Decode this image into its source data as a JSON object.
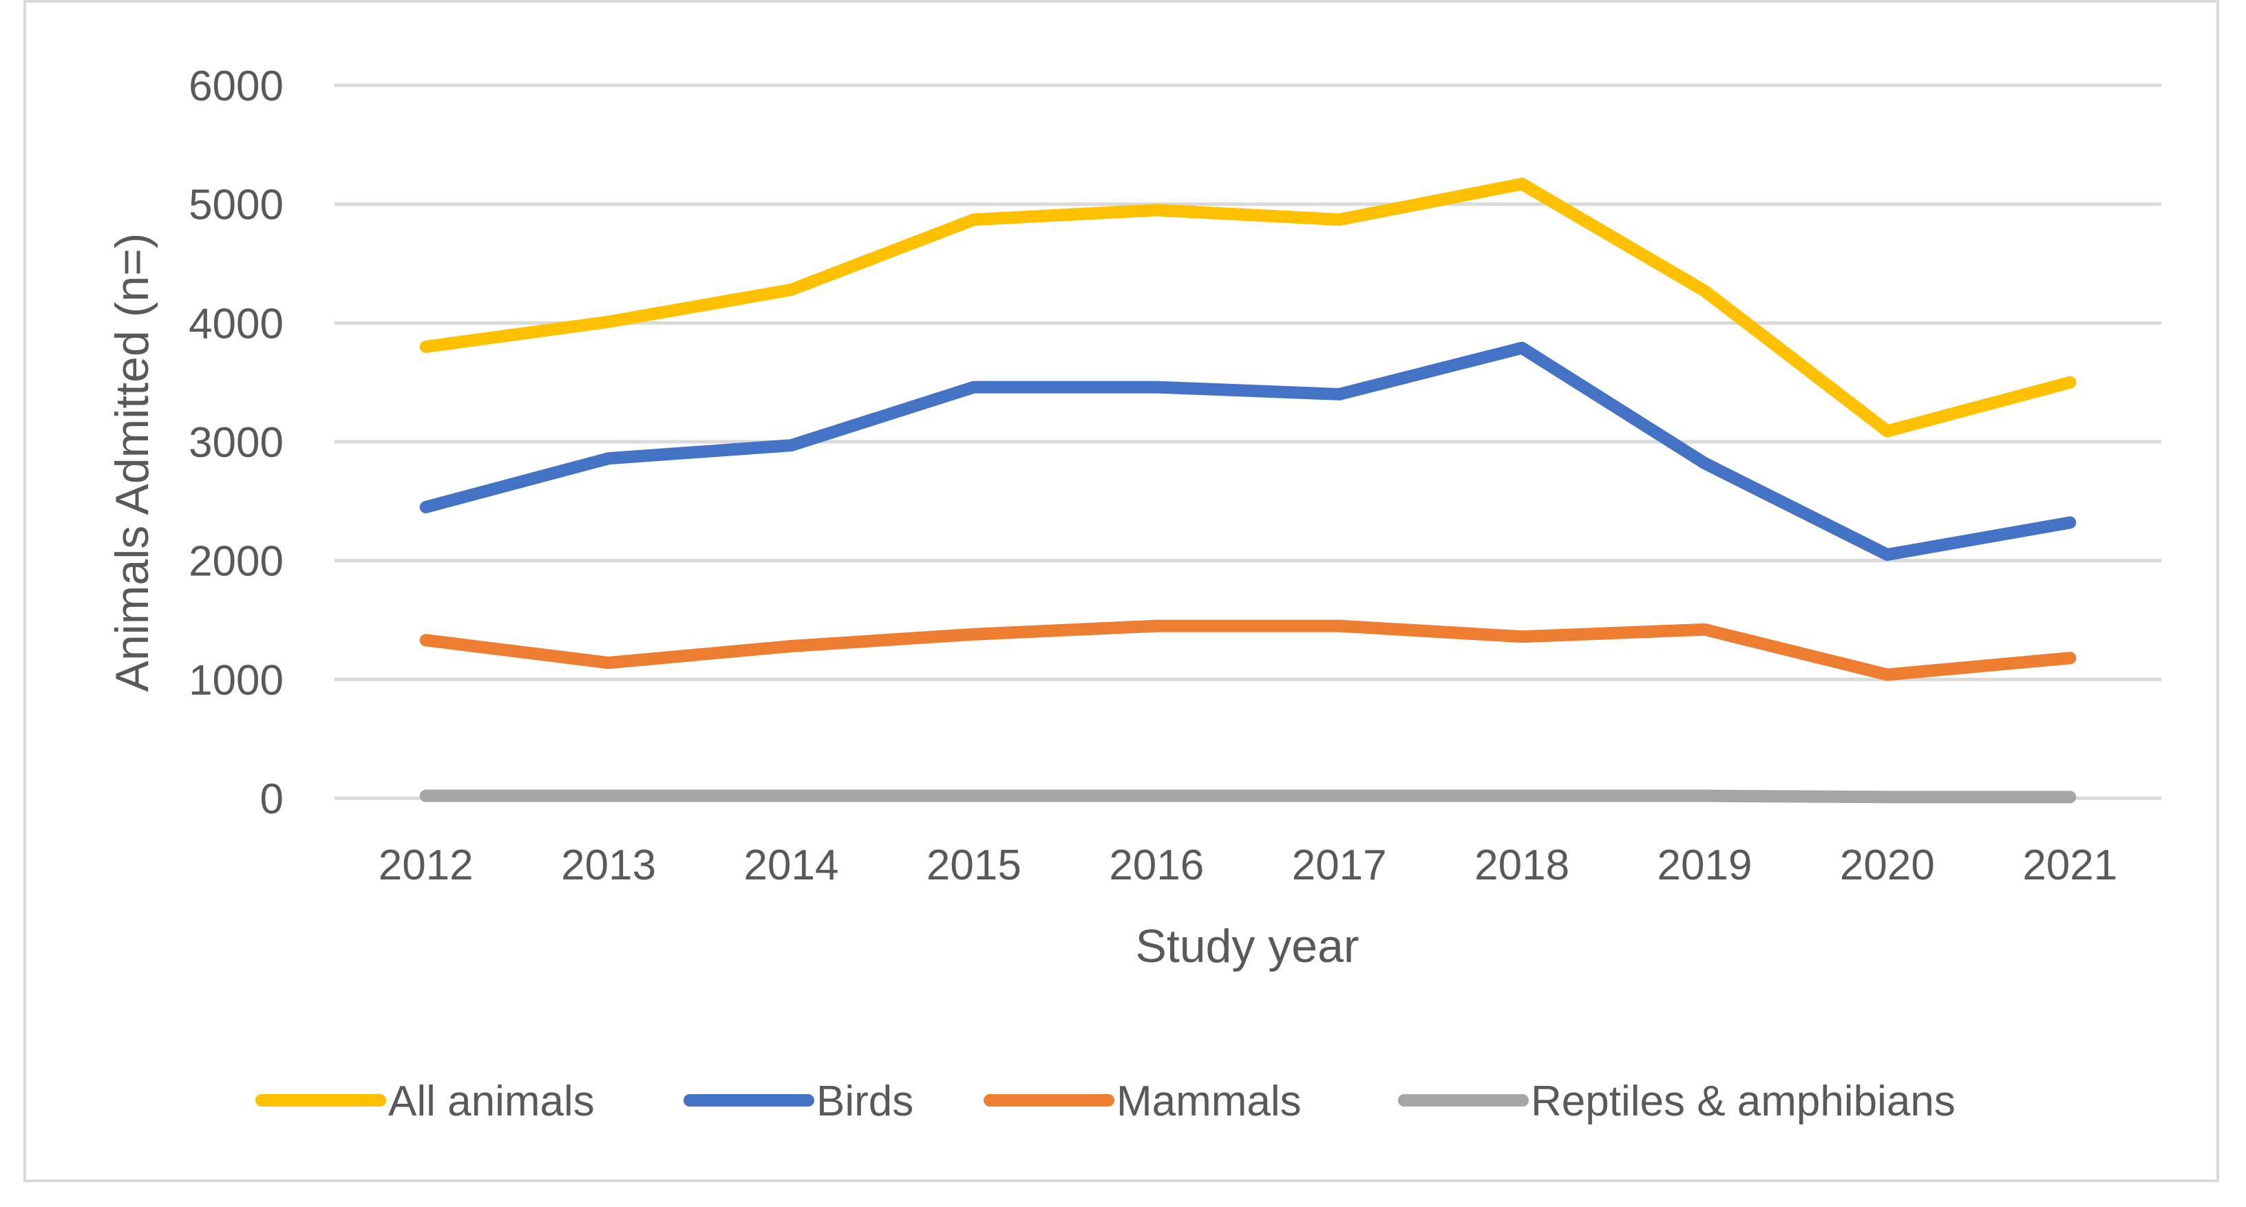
{
  "chart_data": {
    "type": "line",
    "title": "",
    "xlabel": "Study year",
    "ylabel": "Animals Admitted (n=)",
    "categories": [
      "2012",
      "2013",
      "2014",
      "2015",
      "2016",
      "2017",
      "2018",
      "2019",
      "2020",
      "2021"
    ],
    "y_ticks": [
      "0",
      "1000",
      "2000",
      "3000",
      "4000",
      "5000",
      "6000"
    ],
    "ylim": [
      0,
      6000
    ],
    "grid": "horizontal",
    "legend_position": "bottom",
    "series": [
      {
        "name": "All animals",
        "color": "#FFC000",
        "values": [
          3800,
          4010,
          4280,
          4870,
          4950,
          4870,
          5170,
          4270,
          3090,
          3500
        ]
      },
      {
        "name": "Birds",
        "color": "#4472C4",
        "values": [
          2450,
          2860,
          2970,
          3460,
          3460,
          3400,
          3790,
          2820,
          2050,
          2320
        ]
      },
      {
        "name": "Mammals",
        "color": "#ED7D31",
        "values": [
          1330,
          1140,
          1280,
          1380,
          1450,
          1450,
          1360,
          1420,
          1040,
          1180
        ]
      },
      {
        "name": "Reptiles & amphibians",
        "color": "#A5A5A5",
        "values": [
          20,
          20,
          20,
          20,
          20,
          20,
          20,
          20,
          10,
          10
        ]
      }
    ]
  }
}
